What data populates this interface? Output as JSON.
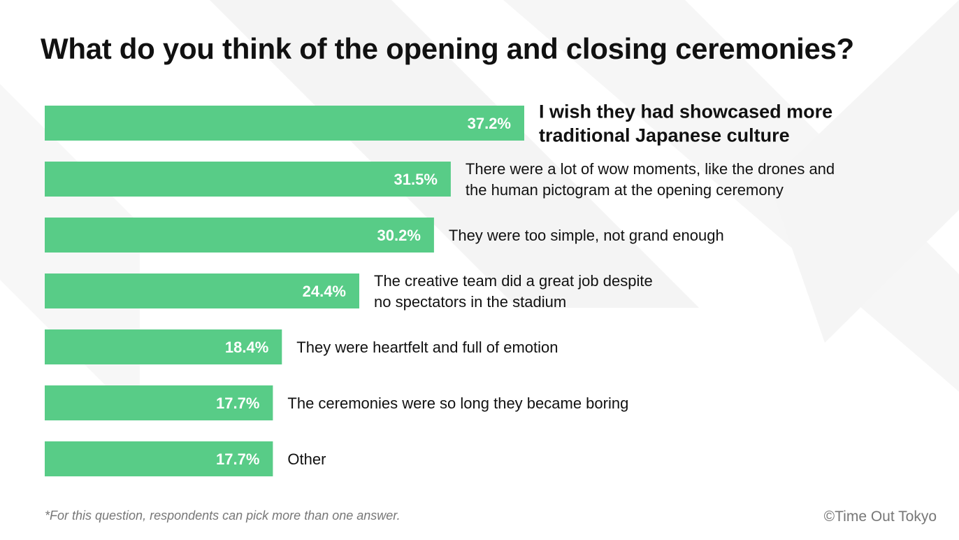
{
  "colors": {
    "bar": "#58cc87",
    "bar_label": "#ffffff",
    "text": "#111111",
    "muted": "#777777"
  },
  "chart_data": {
    "type": "bar",
    "orientation": "horizontal",
    "title": "What do you think of the opening and closing ceremonies?",
    "xlim": [
      0,
      37.2
    ],
    "categories": [
      "I wish they had showcased more traditional Japanese culture",
      "There were a lot of wow moments, like the drones and the human pictogram at the opening ceremony",
      "They were too simple, not grand enough",
      "The creative team did a great job despite no spectators in the stadium",
      "They were heartfelt and full of emotion",
      "The ceremonies were so long they became boring",
      "Other"
    ],
    "category_lines": [
      [
        "I wish they had showcased more",
        "traditional Japanese culture"
      ],
      [
        "There were a lot of wow moments, like the drones and",
        "the human pictogram at the opening ceremony"
      ],
      [
        "They were too simple, not grand enough"
      ],
      [
        "The creative team did a great job despite",
        "no spectators in the stadium"
      ],
      [
        "They were heartfelt and full of emotion"
      ],
      [
        "The ceremonies were so long they became boring"
      ],
      [
        "Other"
      ]
    ],
    "values": [
      37.2,
      31.5,
      30.2,
      24.4,
      18.4,
      17.7,
      17.7
    ],
    "value_labels": [
      "37.2%",
      "31.5%",
      "30.2%",
      "24.4%",
      "18.4%",
      "17.7%",
      "17.7%"
    ],
    "highlight_index": 0,
    "grid": false,
    "legend": "none"
  },
  "footnote": "*For this question, respondents can pick more than one answer.",
  "credit": "©Time Out Tokyo"
}
